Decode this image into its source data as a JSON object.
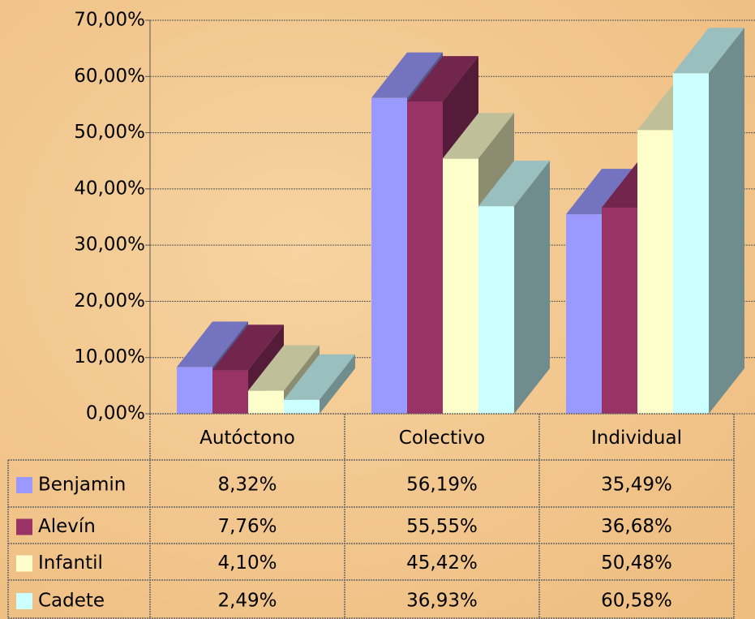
{
  "chart_data": {
    "type": "bar3d",
    "categories": [
      "Autóctono",
      "Colectivo",
      "Individual"
    ],
    "series": [
      {
        "name": "Benjamin",
        "color": "#9999ff",
        "values": [
          8.32,
          56.19,
          35.49
        ],
        "value_labels": [
          "8,32%",
          "56,19%",
          "35,49%"
        ]
      },
      {
        "name": "Alevín",
        "color": "#993366",
        "values": [
          7.76,
          55.55,
          36.68
        ],
        "value_labels": [
          "7,76%",
          "55,55%",
          "36,68%"
        ]
      },
      {
        "name": "Infantil",
        "color": "#ffffcc",
        "values": [
          4.1,
          45.42,
          50.48
        ],
        "value_labels": [
          "4,10%",
          "45,42%",
          "50,48%"
        ]
      },
      {
        "name": "Cadete",
        "color": "#ccffff",
        "values": [
          2.49,
          36.93,
          60.58
        ],
        "value_labels": [
          "2,49%",
          "36,93%",
          "60,58%"
        ]
      }
    ],
    "ylim": [
      0,
      70
    ],
    "yticks": [
      {
        "value": 0,
        "label": "0,00%"
      },
      {
        "value": 10,
        "label": "10,00%"
      },
      {
        "value": 20,
        "label": "20,00%"
      },
      {
        "value": 30,
        "label": "30,00%"
      },
      {
        "value": 40,
        "label": "40,00%"
      },
      {
        "value": 50,
        "label": "50,00%"
      },
      {
        "value": 60,
        "label": "60,00%"
      },
      {
        "value": 70,
        "label": "70,00%"
      }
    ],
    "grid": true,
    "legend": "table"
  }
}
